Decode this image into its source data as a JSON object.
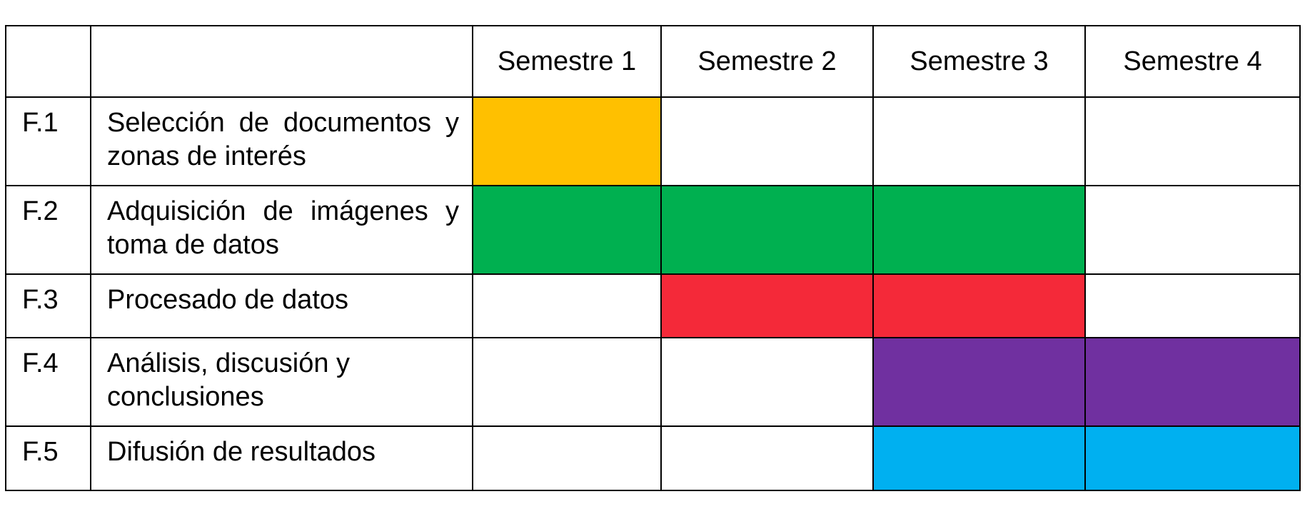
{
  "chart_data": {
    "type": "table",
    "header": {
      "id": "",
      "task": "",
      "periods": [
        "Semestre 1",
        "Semestre 2",
        "Semestre 3",
        "Semestre 4"
      ]
    },
    "phases": [
      {
        "id": "F.1",
        "name": "Selección de documentos y zonas de interés",
        "color": "#FFC000",
        "active": [
          true,
          false,
          false,
          false
        ]
      },
      {
        "id": "F.2",
        "name": "Adquisición de imágenes y toma de datos",
        "color": "#00B050",
        "active": [
          true,
          true,
          true,
          false
        ]
      },
      {
        "id": "F.3",
        "name": "Procesado de datos",
        "color": "#F42939",
        "active": [
          false,
          true,
          true,
          false
        ]
      },
      {
        "id": "F.4",
        "name": "Análisis, discusión y conclusiones",
        "color": "#7030A0",
        "active": [
          false,
          false,
          true,
          true
        ]
      },
      {
        "id": "F.5",
        "name": "Difusión de resultados",
        "color": "#00B0F0",
        "active": [
          false,
          false,
          true,
          true
        ]
      }
    ]
  }
}
